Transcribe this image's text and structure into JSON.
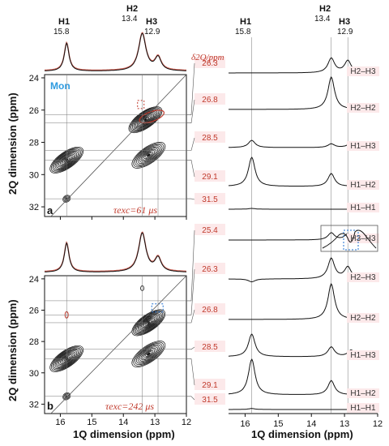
{
  "chart_data": [
    {
      "type": "contour",
      "panel": "a",
      "label": "Mon",
      "tau_text": "τexc=61 μs",
      "peaks_1d": [
        {
          "name": "H1",
          "ppm": 15.8,
          "ppm_text": "15.8"
        },
        {
          "name": "H2",
          "ppm": 13.4,
          "ppm_text": "13.4"
        },
        {
          "name": "H3",
          "ppm": 12.9,
          "ppm_text": "12.9"
        }
      ],
      "xlabel": "1Q dimension (ppm)",
      "ylabel": "2Q dimension (ppm)",
      "xlim": [
        16.5,
        12
      ],
      "ylim": [
        32.6,
        23.8
      ],
      "x_ticks": [
        "16",
        "15",
        "14",
        "13",
        "12"
      ],
      "y_ticks": [
        "24",
        "26",
        "28",
        "30",
        "32"
      ],
      "slices_2q": [
        26.3,
        26.8,
        28.5,
        29.1,
        31.5
      ],
      "cross_peaks": [
        {
          "x": 13.3,
          "y": 26.6,
          "intensity": 1.0
        },
        {
          "x": 13.2,
          "y": 28.8,
          "intensity": 0.8
        },
        {
          "x": 15.8,
          "y": 29.1,
          "intensity": 0.9
        },
        {
          "x": 15.8,
          "y": 31.5,
          "intensity": 0.3
        }
      ]
    },
    {
      "type": "contour",
      "panel": "b",
      "tau_text": "τexc=242 μs",
      "xlabel": "1Q dimension (ppm)",
      "ylabel": "2Q dimension (ppm)",
      "xlim": [
        16.5,
        12
      ],
      "ylim": [
        32.6,
        23.8
      ],
      "x_ticks": [
        "16",
        "15",
        "14",
        "13",
        "12"
      ],
      "y_ticks": [
        "24",
        "26",
        "28",
        "30",
        "32"
      ],
      "slices_2q": [
        25.4,
        26.3,
        26.8,
        28.5,
        29.1,
        31.5
      ],
      "cross_peaks": [
        {
          "x": 13.2,
          "y": 26.8,
          "intensity": 1.0
        },
        {
          "x": 13.2,
          "y": 28.8,
          "intensity": 0.8
        },
        {
          "x": 15.8,
          "y": 29.1,
          "intensity": 0.9
        },
        {
          "x": 15.8,
          "y": 31.5,
          "intensity": 0.3
        }
      ]
    },
    {
      "type": "line",
      "panel": "slices",
      "title": "δ2Q/ppm",
      "xlabel": "1Q dimension (ppm)",
      "xlim": [
        16.5,
        12
      ],
      "x_ticks": [
        "16",
        "15",
        "14",
        "13",
        "12"
      ],
      "peaks_1d": [
        {
          "name": "H1",
          "ppm": 15.8,
          "ppm_text": "15.8"
        },
        {
          "name": "H2",
          "ppm": 13.4,
          "ppm_text": "13.4"
        },
        {
          "name": "H3",
          "ppm": 12.9,
          "ppm_text": "12.9"
        }
      ],
      "slices": [
        {
          "shift": "26.3",
          "pair": "H2–H3",
          "peaks": [
            {
              "ppm": 13.4,
              "h": 0.6
            },
            {
              "ppm": 12.9,
              "h": 0.5
            }
          ]
        },
        {
          "shift": "26.8",
          "pair": "H2–H2",
          "peaks": [
            {
              "ppm": 13.4,
              "h": 1.0
            }
          ]
        },
        {
          "shift": "28.5",
          "pair": "H1–H3",
          "peaks": [
            {
              "ppm": 15.8,
              "h": 0.3
            },
            {
              "ppm": 13.4,
              "h": 0.15
            },
            {
              "ppm": 12.8,
              "h": 0.2
            }
          ]
        },
        {
          "shift": "29.1",
          "pair": "H1–H2",
          "peaks": [
            {
              "ppm": 15.8,
              "h": 0.9
            },
            {
              "ppm": 13.4,
              "h": 0.4
            }
          ]
        },
        {
          "shift": "31.5",
          "pair": "H1–H1",
          "peaks": [
            {
              "ppm": 15.8,
              "h": 0.1
            }
          ]
        },
        {
          "shift": "25.4",
          "pair": "H3–H3",
          "peaks": [
            {
              "ppm": 13.4,
              "h": 0.35
            },
            {
              "ppm": 12.9,
              "h": 0.3
            }
          ]
        },
        {
          "shift": "26.3",
          "pair": "H2–H3",
          "peaks": [
            {
              "ppm": 15.8,
              "h": -0.1
            },
            {
              "ppm": 13.4,
              "h": 0.7
            },
            {
              "ppm": 12.9,
              "h": 0.4
            }
          ]
        },
        {
          "shift": "26.8",
          "pair": "H2–H2",
          "peaks": [
            {
              "ppm": 13.4,
              "h": 1.0
            }
          ]
        },
        {
          "shift": "28.5",
          "pair": "H1–H3",
          "peaks": [
            {
              "ppm": 15.8,
              "h": 0.7
            },
            {
              "ppm": 13.4,
              "h": 0.3
            },
            {
              "ppm": 12.8,
              "h": 0.2
            }
          ]
        },
        {
          "shift": "29.1",
          "pair": "H1–H2",
          "peaks": [
            {
              "ppm": 15.8,
              "h": 1.0
            },
            {
              "ppm": 13.4,
              "h": 0.4
            }
          ]
        },
        {
          "shift": "31.5",
          "pair": "H1–H1",
          "peaks": [
            {
              "ppm": 15.8,
              "h": 0.12
            }
          ]
        }
      ]
    }
  ],
  "colors": {
    "contour": "#111111",
    "accent_red": "#c0392b",
    "mon_blue": "#2e9be0",
    "box_blue": "#1f6fd1"
  }
}
